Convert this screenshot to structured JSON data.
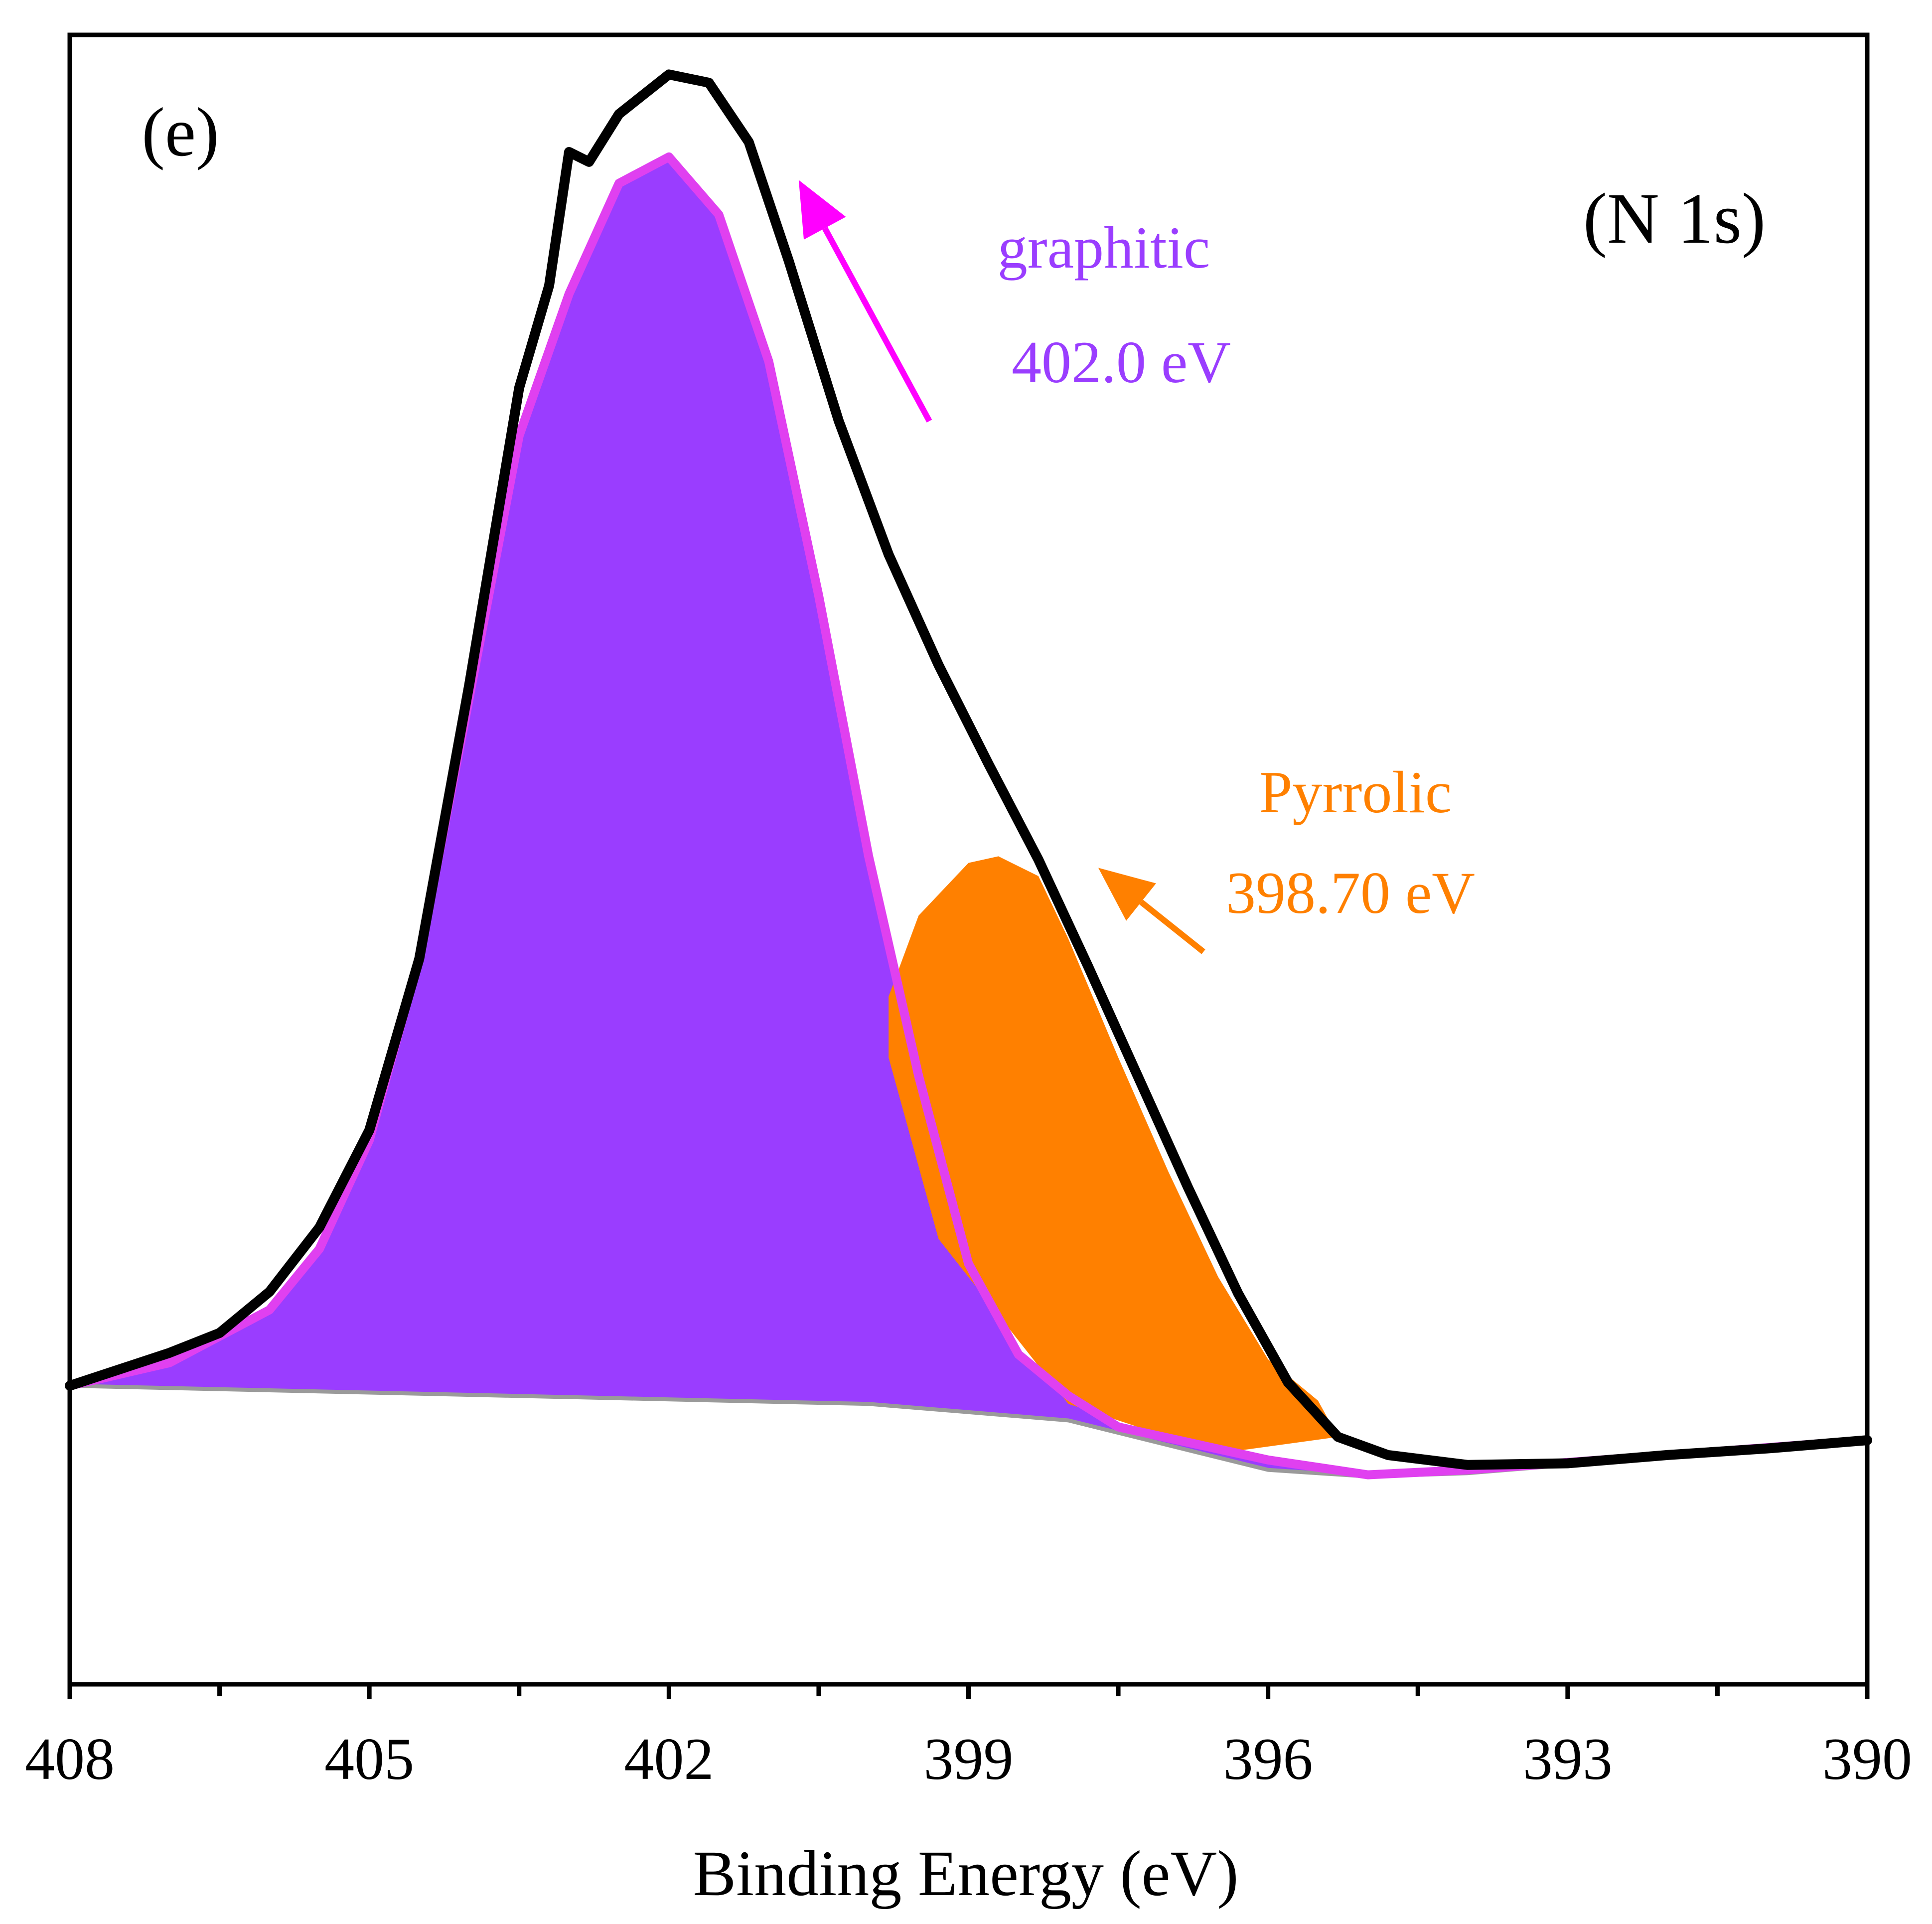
{
  "chart_data": {
    "type": "area",
    "panel_label": "(e)",
    "title": "(N 1s)",
    "xlabel": "Binding Energy (eV)",
    "ylabel": "",
    "xlim": [
      408,
      390
    ],
    "x_direction": "reversed",
    "xticks": [
      408,
      405,
      402,
      399,
      396,
      393,
      390
    ],
    "minor_xticks": [
      406.5,
      403.5,
      400.5,
      397.5,
      394.5,
      391.5
    ],
    "y_units": "arbitrary (relative intensity)",
    "ylim": [
      0,
      1
    ],
    "series": [
      {
        "name": "envelope",
        "role": "measured / total fit",
        "color": "#000000",
        "points": [
          [
            408.0,
            0.181
          ],
          [
            407.0,
            0.201
          ],
          [
            406.5,
            0.213
          ],
          [
            406.0,
            0.238
          ],
          [
            405.5,
            0.277
          ],
          [
            405.0,
            0.336
          ],
          [
            404.5,
            0.44
          ],
          [
            404.0,
            0.606
          ],
          [
            403.5,
            0.786
          ],
          [
            403.2,
            0.848
          ],
          [
            403.0,
            0.929
          ],
          [
            402.8,
            0.923
          ],
          [
            402.5,
            0.952
          ],
          [
            402.0,
            0.976
          ],
          [
            401.6,
            0.971
          ],
          [
            401.2,
            0.935
          ],
          [
            400.8,
            0.863
          ],
          [
            400.3,
            0.766
          ],
          [
            399.8,
            0.685
          ],
          [
            399.3,
            0.618
          ],
          [
            398.8,
            0.558
          ],
          [
            398.3,
            0.5
          ],
          [
            397.8,
            0.435
          ],
          [
            397.3,
            0.368
          ],
          [
            396.8,
            0.301
          ],
          [
            396.3,
            0.237
          ],
          [
            395.8,
            0.183
          ],
          [
            395.3,
            0.15
          ],
          [
            394.8,
            0.139
          ],
          [
            394.0,
            0.133
          ],
          [
            393.0,
            0.134
          ],
          [
            392.0,
            0.139
          ],
          [
            391.0,
            0.143
          ],
          [
            390.0,
            0.148
          ]
        ]
      },
      {
        "name": "graphitic",
        "label": "graphitic",
        "peak_label": "402.0 eV",
        "center": 402.0,
        "color": "#9A3DFF",
        "edge_color": "#E040F0",
        "points": [
          [
            408.0,
            0.181
          ],
          [
            407.0,
            0.195
          ],
          [
            406.0,
            0.227
          ],
          [
            405.5,
            0.264
          ],
          [
            405.0,
            0.33
          ],
          [
            404.5,
            0.441
          ],
          [
            404.0,
            0.598
          ],
          [
            403.5,
            0.757
          ],
          [
            403.0,
            0.843
          ],
          [
            402.5,
            0.91
          ],
          [
            402.0,
            0.926
          ],
          [
            401.5,
            0.891
          ],
          [
            401.0,
            0.802
          ],
          [
            400.5,
            0.66
          ],
          [
            400.0,
            0.502
          ],
          [
            399.5,
            0.369
          ],
          [
            399.0,
            0.255
          ],
          [
            398.5,
            0.2
          ],
          [
            398.0,
            0.175
          ],
          [
            397.5,
            0.156
          ],
          [
            396.0,
            0.136
          ],
          [
            395.0,
            0.127
          ],
          [
            394.0,
            0.13
          ],
          [
            392.0,
            0.139
          ],
          [
            390.0,
            0.148
          ]
        ]
      },
      {
        "name": "pyrrolic",
        "label": "Pyrrolic",
        "peak_label": "398.70 eV",
        "center": 398.7,
        "color": "#FF8000",
        "points": [
          [
            399.8,
            0.417
          ],
          [
            399.5,
            0.466
          ],
          [
            399.0,
            0.498
          ],
          [
            398.7,
            0.502
          ],
          [
            398.3,
            0.49
          ],
          [
            398.0,
            0.452
          ],
          [
            397.5,
            0.38
          ],
          [
            397.0,
            0.311
          ],
          [
            396.5,
            0.247
          ],
          [
            396.0,
            0.197
          ],
          [
            395.5,
            0.172
          ]
        ]
      },
      {
        "name": "background",
        "role": "baseline",
        "color": "#9A9A9A",
        "points": [
          [
            408.0,
            0.181
          ],
          [
            400.0,
            0.17
          ],
          [
            398.0,
            0.16
          ],
          [
            396.0,
            0.13
          ],
          [
            395.0,
            0.126
          ],
          [
            394.0,
            0.128
          ],
          [
            390.0,
            0.148
          ]
        ]
      }
    ],
    "annotations": [
      {
        "target": "graphitic",
        "text": [
          "graphitic",
          "402.0 eV"
        ],
        "color": "#9A3DFF",
        "arrow_color": "#FF00FF",
        "arrow_to": [
          400.7,
          0.912
        ]
      },
      {
        "target": "pyrrolic",
        "text": [
          "Pyrrolic",
          "398.70 eV"
        ],
        "color": "#FF8000",
        "arrow_color": "#FF8000",
        "arrow_to": [
          397.7,
          0.495
        ]
      }
    ],
    "grid": false,
    "legend": "none"
  }
}
